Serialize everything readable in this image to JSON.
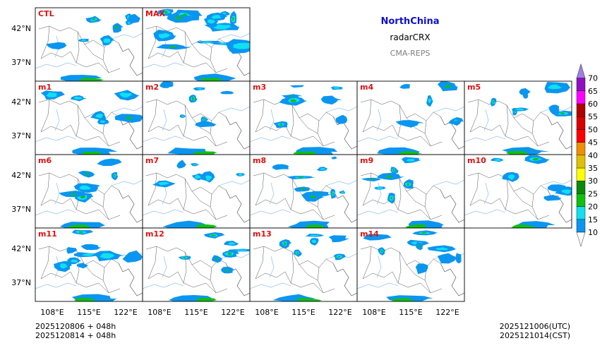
{
  "header": {
    "region": "NorthChina",
    "variable": "radarCRX",
    "system": "CMA-REPS"
  },
  "colors": {
    "region_title": "#1010d0",
    "system_title": "#808080",
    "panel_label": "#e01010"
  },
  "panels": [
    {
      "label": "CTL"
    },
    {
      "label": "MAX"
    },
    {
      "label": "m1"
    },
    {
      "label": "m2"
    },
    {
      "label": "m3"
    },
    {
      "label": "m4"
    },
    {
      "label": "m5"
    },
    {
      "label": "m6"
    },
    {
      "label": "m7"
    },
    {
      "label": "m8"
    },
    {
      "label": "m9"
    },
    {
      "label": "m10"
    },
    {
      "label": "m11"
    },
    {
      "label": "m12"
    },
    {
      "label": "m13"
    },
    {
      "label": "m14"
    }
  ],
  "axes": {
    "lat_ticks": [
      "42°N",
      "37°N"
    ],
    "lon_ticks": [
      "108°E",
      "115°E",
      "122°E"
    ]
  },
  "colorbar": {
    "levels": [
      "10",
      "15",
      "20",
      "25",
      "30",
      "35",
      "40",
      "45",
      "50",
      "55",
      "60",
      "65",
      "70"
    ],
    "colors": [
      "#0a96f0",
      "#10e0f0",
      "#10c010",
      "#0a8a0a",
      "#ffff00",
      "#e0c000",
      "#f09000",
      "#ff0000",
      "#d80000",
      "#b00000",
      "#ff00ff",
      "#9010c0",
      "#a080e0"
    ]
  },
  "footer": {
    "init_utc": "2025120806  +  048h",
    "init_cst": "2025120814  +  048h",
    "valid_utc": "2025121006(UTC)",
    "valid_cst": "2025121014(CST)"
  }
}
